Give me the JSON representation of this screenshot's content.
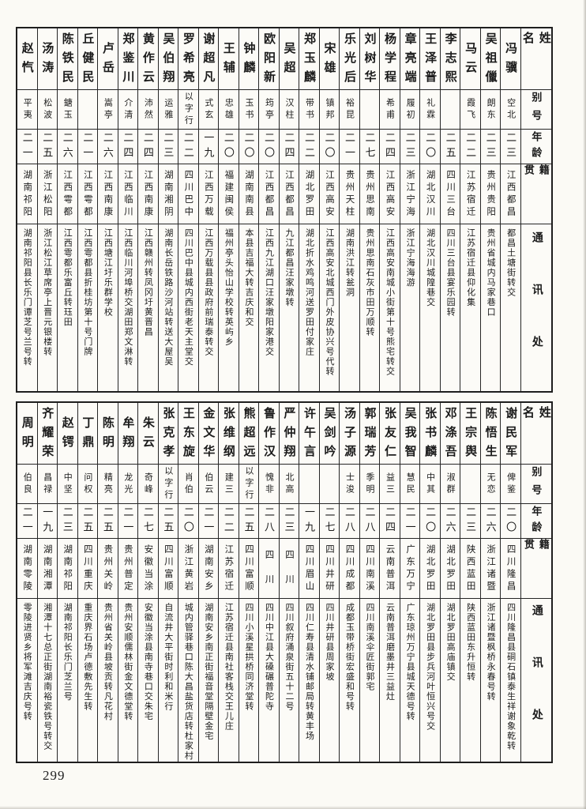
{
  "page": {
    "number": "299"
  },
  "colors": {
    "paper": "#fbfaf5",
    "ink": "#1b1b1b",
    "line": "#262626"
  },
  "headers": [
    "姓名",
    "别号",
    "年龄",
    "籍贯",
    "通讯处"
  ],
  "tables": [
    {
      "entries": [
        {
          "name": "赵忾",
          "alias": "平夷",
          "age": "二一",
          "native": "湖南祁阳",
          "address": "湖南祁阳县长乐门谭芝号兰号转"
        },
        {
          "name": "汤涛",
          "alias": "松波",
          "age": "二五",
          "native": "浙江松阳",
          "address": "浙江松江草席亭上晋元银楼转"
        },
        {
          "name": "陈铁民",
          "alias": "鎕玉",
          "age": "二六",
          "native": "江西雩都",
          "address": "江西雩都乐富丘转珏田"
        },
        {
          "name": "丘健民",
          "alias": "",
          "age": "二一",
          "native": "江西雩都",
          "address": "江西雩都县折桂坊第十号门牌"
        },
        {
          "name": "卢岳",
          "alias": "嵩亭",
          "age": "二六",
          "native": "江西南康",
          "address": "江西塘江圩乐群学校"
        },
        {
          "name": "郑鉴川",
          "alias": "介清",
          "age": "二四",
          "native": "江西临川",
          "address": "江西临川河埠桥交湖田郑文淋转"
        },
        {
          "name": "黄作云",
          "alias": "沛然",
          "age": "二四",
          "native": "江西南康",
          "address": "江西赣州转凤冈圩黄晋昌"
        },
        {
          "name": "吴伯翔",
          "alias": "运雅",
          "age": "二三",
          "native": "湖南湘阴",
          "address": "湖南长岳铁路沙河站转送大屋吴"
        },
        {
          "name": "罗希亮",
          "alias": "以字行",
          "age": "二二",
          "native": "四川巴中",
          "address": "四川巴中县城内西街老天主堂交"
        },
        {
          "name": "谢超凡",
          "alias": "式玄",
          "age": "一九",
          "native": "江西万载",
          "address": "江西万载县县政府前瑞泰转交"
        },
        {
          "name": "王辅",
          "alias": "忠雄",
          "age": "二〇",
          "native": "福建闽侯",
          "address": "福州亭头怡山学校转英屿乡"
        },
        {
          "name": "钟麟",
          "alias": "玉书",
          "age": "二〇",
          "native": "湖南南县",
          "address": "本县吉福大转吉庆和交"
        },
        {
          "name": "欧阳新",
          "alias": "筠亭",
          "age": "二〇",
          "native": "江西都昌",
          "address": "江西九江湖口汪家墩阳家港交"
        },
        {
          "name": "吴超",
          "alias": "汉柱",
          "age": "二四",
          "native": "江西都昌",
          "address": "九江都昌汪家墩转"
        },
        {
          "name": "郑玉麟",
          "alias": "带书",
          "age": "二二",
          "native": "湖北罗田",
          "address": "湖北折水鸡鸣河送罗田付家庄"
        },
        {
          "name": "宋雄",
          "alias": "镇邦",
          "age": "二〇",
          "native": "江西高安",
          "address": "江西高安北城西门外皮协兴号代转"
        },
        {
          "name": "乐光后",
          "alias": "裕昆",
          "age": "二一",
          "native": "贵州天柱",
          "address": "湖南洪江转瓮洞"
        },
        {
          "name": "刘树华",
          "alias": "",
          "age": "二七",
          "native": "贵州思南",
          "address": "贵州思南石灰市田万顺转"
        },
        {
          "name": "杨学程",
          "alias": "希甫",
          "age": "二四",
          "native": "江西高安",
          "address": "江西高安南城小街第十号熊宅转交"
        },
        {
          "name": "章亮端",
          "alias": "履初",
          "age": "二三",
          "native": "浙江宁海",
          "address": "浙江宁海海游"
        },
        {
          "name": "王泽普",
          "alias": "礼霖",
          "age": "二〇",
          "native": "湖北汉川",
          "address": "湖北汉川城隍巷交"
        },
        {
          "name": "李志熙",
          "alias": "",
          "age": "二五",
          "native": "四川三台",
          "address": "四川三台县宴乐园转"
        },
        {
          "name": "马云",
          "alias": "霞飞",
          "age": "二二",
          "native": "江苏宿迁",
          "address": "江苏宿迁县仰化集"
        },
        {
          "name": "吴祖儠",
          "alias": "朗东",
          "age": "二三",
          "native": "贵州贵阳",
          "address": "贵州省城内马家巷口"
        },
        {
          "name": "冯骥",
          "alias": "空北",
          "age": "二三",
          "native": "江西都昌",
          "address": "都昌土塘街转交"
        }
      ]
    },
    {
      "entries": [
        {
          "name": "周明",
          "alias": "伯良",
          "age": "二一",
          "native": "湖南零陵",
          "address": "零陵进贤乡将军滩吉庆号转"
        },
        {
          "name": "齐耀荣",
          "alias": "昌禄",
          "age": "一九",
          "native": "湖南湘潭",
          "address": "湘潭十七总正街湖南裕瓷铁号转交"
        },
        {
          "name": "赵锷",
          "alias": "中坚",
          "age": "二三",
          "native": "湖南祁阳",
          "address": "湖南祁阳长乐门芝兰号"
        },
        {
          "name": "丁鼎",
          "alias": "问权",
          "age": "二五",
          "native": "四川重庆",
          "address": "重庆界石场卢德敷先生转"
        },
        {
          "name": "陈明",
          "alias": "精亮",
          "age": "二五",
          "native": "贵州关岭",
          "address": "贵州省关岭县坡贡转凡花村"
        },
        {
          "name": "牟翔",
          "alias": "龙光",
          "age": "二一",
          "native": "贵州普定",
          "address": "贵州安顺儒林街金文德堂转"
        },
        {
          "name": "朱云",
          "alias": "奇峰",
          "age": "二七",
          "native": "安徽当涂",
          "address": "安徽当涂县南寺巷口交朱宅"
        },
        {
          "name": "张克孝",
          "alias": "以字行",
          "age": "二五",
          "native": "四川富顺",
          "address": "自流井大平街时利和米行"
        },
        {
          "name": "王东旋",
          "alias": "肖伯",
          "age": "二〇",
          "native": "浙江黄岩",
          "address": "城内管驿巷口陈大昌盐货店转杜家村"
        },
        {
          "name": "金文华",
          "alias": "伯云",
          "age": "二一",
          "native": "湖南安乡",
          "address": "湖南安乡南正街福音堂隔壁金宅"
        },
        {
          "name": "张维纲",
          "alias": "建三",
          "age": "二二",
          "native": "江苏宿迁",
          "address": "江苏宿迁县南社客栈交王儿庄"
        },
        {
          "name": "熊超远",
          "alias": "以字行",
          "age": "二五",
          "native": "四川富顺",
          "address": "四川小溪星拱桥同济堂转"
        },
        {
          "name": "鲁作汉",
          "alias": "愧非",
          "age": "二八",
          "native": "四　川",
          "address": "四川中江县大磉碾普陀寺"
        },
        {
          "name": "严仲翔",
          "alias": "北高",
          "age": "二三",
          "native": "四　川",
          "address": "四川叙府涌泉街五十二号"
        },
        {
          "name": "许午言",
          "alias": "",
          "age": "一九",
          "native": "四川眉山",
          "address": "四川仁寿县清水铺邮局转黄丰场"
        },
        {
          "name": "吴剑吟",
          "alias": "",
          "age": "二七",
          "native": "四川井研",
          "address": "四川井研县周家坡"
        },
        {
          "name": "汤子源",
          "alias": "士浚",
          "age": "二八",
          "native": "四川成都",
          "address": "成都玉带桥街宏盛和号转"
        },
        {
          "name": "郭瑞芳",
          "alias": "季明",
          "age": "二八",
          "native": "四川南溪",
          "address": "四川南溪伞匠街郭宅"
        },
        {
          "name": "张友仁",
          "alias": "益三",
          "age": "二四",
          "native": "云南普洱",
          "address": "云南普洱磨墨井三益灶"
        },
        {
          "name": "吴我智",
          "alias": "慧民",
          "age": "二一",
          "native": "广东万宁",
          "address": "广东琼州万宁县城天德号转"
        },
        {
          "name": "张书麟",
          "alias": "中其",
          "age": "二〇",
          "native": "湖北罗田",
          "address": "湖北罗田县步兵河叶恒兴号交"
        },
        {
          "name": "邓涤吾",
          "alias": "淑群",
          "age": "二六",
          "native": "湖北罗田",
          "address": "湖北罗田高庙镇交"
        },
        {
          "name": "王宗舆",
          "alias": "",
          "age": "二三",
          "native": "陕西蓝田",
          "address": "陕西蓝田东升恒转"
        },
        {
          "name": "陈悟生",
          "alias": "无恋",
          "age": "二六",
          "native": "浙江诸暨",
          "address": "浙江诸暨枫桥永春号转"
        },
        {
          "name": "谢民军",
          "alias": "俾鉴",
          "age": "二〇",
          "native": "四川隆昌",
          "address": "四川隆昌县硐石镇泰生祥谢象乾转"
        }
      ]
    }
  ]
}
